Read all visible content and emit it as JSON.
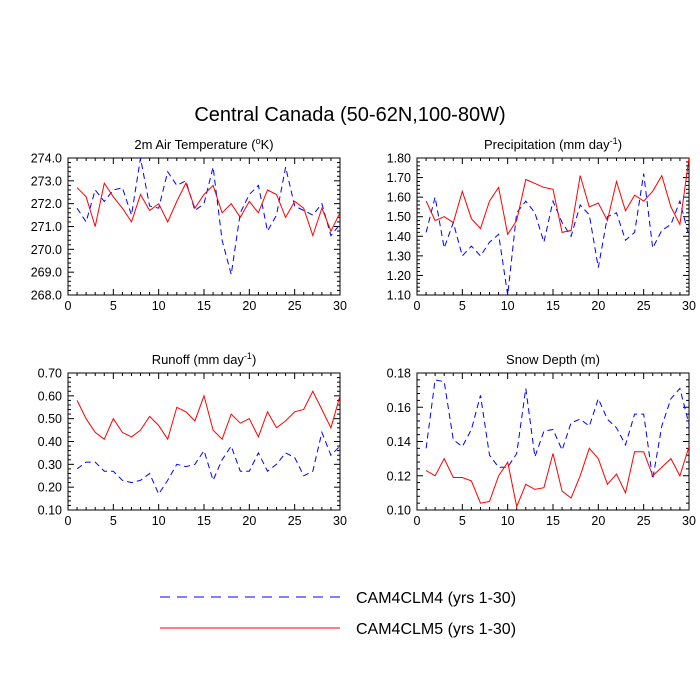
{
  "figure": {
    "title": "Central Canada (50-62N,100-80W)"
  },
  "legend": {
    "entries": [
      {
        "label": "CAM4CLM4 (yrs 1-30)",
        "color": "#0000ff",
        "dash": "dashed"
      },
      {
        "label": "CAM4CLM5 (yrs 1-30)",
        "color": "#ff0000",
        "dash": "solid"
      }
    ]
  },
  "chart_data": [
    {
      "type": "line",
      "title_main": "2m Air Temperature (",
      "title_sup": "o",
      "title_post": "K)",
      "xlim": [
        0,
        30
      ],
      "ylim": [
        268.0,
        274.0
      ],
      "xticks": [
        0,
        5,
        10,
        15,
        20,
        25,
        30
      ],
      "yticks": [
        268.0,
        269.0,
        270.0,
        271.0,
        272.0,
        273.0,
        274.0
      ],
      "ytick_labels": [
        "268.0",
        "269.0",
        "270.0",
        "271.0",
        "272.0",
        "273.0",
        "274.0"
      ],
      "x": [
        1,
        2,
        3,
        4,
        5,
        6,
        7,
        8,
        9,
        10,
        11,
        12,
        13,
        14,
        15,
        16,
        17,
        18,
        19,
        20,
        21,
        22,
        23,
        24,
        25,
        26,
        27,
        28,
        29,
        30
      ],
      "series": [
        {
          "name": "CAM4CLM4 (yrs 1-30)",
          "color": "#0000ff",
          "dash": "dashed",
          "values": [
            271.8,
            271.2,
            272.6,
            272.1,
            272.6,
            272.7,
            271.5,
            274.0,
            271.9,
            271.8,
            273.4,
            272.8,
            273.0,
            271.7,
            272.0,
            273.6,
            270.4,
            268.9,
            271.6,
            272.4,
            272.8,
            270.8,
            271.5,
            273.6,
            271.9,
            271.7,
            271.5,
            272.0,
            270.6,
            271.1
          ]
        },
        {
          "name": "CAM4CLM5 (yrs 1-30)",
          "color": "#ff0000",
          "dash": "solid",
          "values": [
            272.7,
            272.3,
            271.0,
            272.9,
            272.3,
            271.8,
            271.2,
            272.4,
            271.7,
            272.0,
            271.2,
            272.1,
            272.9,
            271.8,
            272.4,
            272.8,
            271.6,
            272.0,
            271.4,
            272.1,
            271.6,
            272.6,
            272.4,
            271.4,
            272.1,
            271.8,
            270.6,
            271.8,
            270.8,
            271.6
          ]
        }
      ]
    },
    {
      "type": "line",
      "title_main": "Precipitation (mm day",
      "title_sup": "-1",
      "title_post": ")",
      "xlim": [
        0,
        30
      ],
      "ylim": [
        1.1,
        1.8
      ],
      "xticks": [
        0,
        5,
        10,
        15,
        20,
        25,
        30
      ],
      "yticks": [
        1.1,
        1.2,
        1.3,
        1.4,
        1.5,
        1.6,
        1.7,
        1.8
      ],
      "ytick_labels": [
        "1.10",
        "1.20",
        "1.30",
        "1.40",
        "1.50",
        "1.60",
        "1.70",
        "1.80"
      ],
      "x": [
        1,
        2,
        3,
        4,
        5,
        6,
        7,
        8,
        9,
        10,
        11,
        12,
        13,
        14,
        15,
        16,
        17,
        18,
        19,
        20,
        21,
        22,
        23,
        24,
        25,
        26,
        27,
        28,
        29,
        30
      ],
      "series": [
        {
          "name": "CAM4CLM4 (yrs 1-30)",
          "color": "#0000ff",
          "dash": "dashed",
          "values": [
            1.42,
            1.6,
            1.34,
            1.47,
            1.3,
            1.35,
            1.3,
            1.37,
            1.41,
            1.1,
            1.52,
            1.58,
            1.52,
            1.37,
            1.58,
            1.47,
            1.4,
            1.56,
            1.51,
            1.24,
            1.5,
            1.52,
            1.38,
            1.42,
            1.72,
            1.34,
            1.43,
            1.46,
            1.58,
            1.4
          ]
        },
        {
          "name": "CAM4CLM5 (yrs 1-30)",
          "color": "#ff0000",
          "dash": "solid",
          "values": [
            1.58,
            1.48,
            1.5,
            1.47,
            1.63,
            1.49,
            1.44,
            1.58,
            1.65,
            1.41,
            1.48,
            1.69,
            1.67,
            1.65,
            1.64,
            1.42,
            1.43,
            1.71,
            1.55,
            1.57,
            1.48,
            1.68,
            1.53,
            1.61,
            1.58,
            1.63,
            1.71,
            1.55,
            1.46,
            1.8
          ]
        }
      ]
    },
    {
      "type": "line",
      "title_main": "Runoff (mm day",
      "title_sup": "-1",
      "title_post": ")",
      "xlim": [
        0,
        30
      ],
      "ylim": [
        0.1,
        0.7
      ],
      "xticks": [
        0,
        5,
        10,
        15,
        20,
        25,
        30
      ],
      "yticks": [
        0.1,
        0.2,
        0.3,
        0.4,
        0.5,
        0.6,
        0.7
      ],
      "ytick_labels": [
        "0.10",
        "0.20",
        "0.30",
        "0.40",
        "0.50",
        "0.60",
        "0.70"
      ],
      "x": [
        1,
        2,
        3,
        4,
        5,
        6,
        7,
        8,
        9,
        10,
        11,
        12,
        13,
        14,
        15,
        16,
        17,
        18,
        19,
        20,
        21,
        22,
        23,
        24,
        25,
        26,
        27,
        28,
        29,
        30
      ],
      "series": [
        {
          "name": "CAM4CLM4 (yrs 1-30)",
          "color": "#0000ff",
          "dash": "dashed",
          "values": [
            0.28,
            0.31,
            0.31,
            0.27,
            0.27,
            0.23,
            0.22,
            0.23,
            0.26,
            0.17,
            0.23,
            0.3,
            0.29,
            0.3,
            0.36,
            0.23,
            0.32,
            0.38,
            0.27,
            0.27,
            0.35,
            0.27,
            0.3,
            0.35,
            0.33,
            0.25,
            0.27,
            0.44,
            0.34,
            0.38
          ]
        },
        {
          "name": "CAM4CLM5 (yrs 1-30)",
          "color": "#ff0000",
          "dash": "solid",
          "values": [
            0.58,
            0.5,
            0.44,
            0.41,
            0.5,
            0.44,
            0.42,
            0.45,
            0.51,
            0.47,
            0.41,
            0.55,
            0.53,
            0.49,
            0.6,
            0.45,
            0.41,
            0.52,
            0.48,
            0.5,
            0.42,
            0.53,
            0.46,
            0.49,
            0.53,
            0.54,
            0.62,
            0.54,
            0.46,
            0.6
          ]
        }
      ]
    },
    {
      "type": "line",
      "title_main": "Snow Depth (m)",
      "title_sup": "",
      "title_post": "",
      "xlim": [
        0,
        30
      ],
      "ylim": [
        0.1,
        0.18
      ],
      "xticks": [
        0,
        5,
        10,
        15,
        20,
        25,
        30
      ],
      "yticks": [
        0.1,
        0.12,
        0.14,
        0.16,
        0.18
      ],
      "ytick_labels": [
        "0.10",
        "0.12",
        "0.14",
        "0.16",
        "0.18"
      ],
      "x": [
        1,
        2,
        3,
        4,
        5,
        6,
        7,
        8,
        9,
        10,
        11,
        12,
        13,
        14,
        15,
        16,
        17,
        18,
        19,
        20,
        21,
        22,
        23,
        24,
        25,
        26,
        27,
        28,
        29,
        30
      ],
      "series": [
        {
          "name": "CAM4CLM4 (yrs 1-30)",
          "color": "#0000ff",
          "dash": "dashed",
          "values": [
            0.136,
            0.176,
            0.175,
            0.141,
            0.137,
            0.147,
            0.167,
            0.132,
            0.125,
            0.125,
            0.133,
            0.171,
            0.131,
            0.146,
            0.147,
            0.135,
            0.151,
            0.153,
            0.149,
            0.165,
            0.153,
            0.148,
            0.138,
            0.156,
            0.156,
            0.118,
            0.149,
            0.165,
            0.171,
            0.15
          ]
        },
        {
          "name": "CAM4CLM5 (yrs 1-30)",
          "color": "#ff0000",
          "dash": "solid",
          "values": [
            0.123,
            0.12,
            0.13,
            0.119,
            0.119,
            0.117,
            0.104,
            0.105,
            0.12,
            0.128,
            0.102,
            0.115,
            0.112,
            0.113,
            0.133,
            0.111,
            0.107,
            0.12,
            0.136,
            0.13,
            0.115,
            0.121,
            0.11,
            0.134,
            0.134,
            0.12,
            0.125,
            0.13,
            0.12,
            0.137
          ]
        }
      ]
    }
  ]
}
